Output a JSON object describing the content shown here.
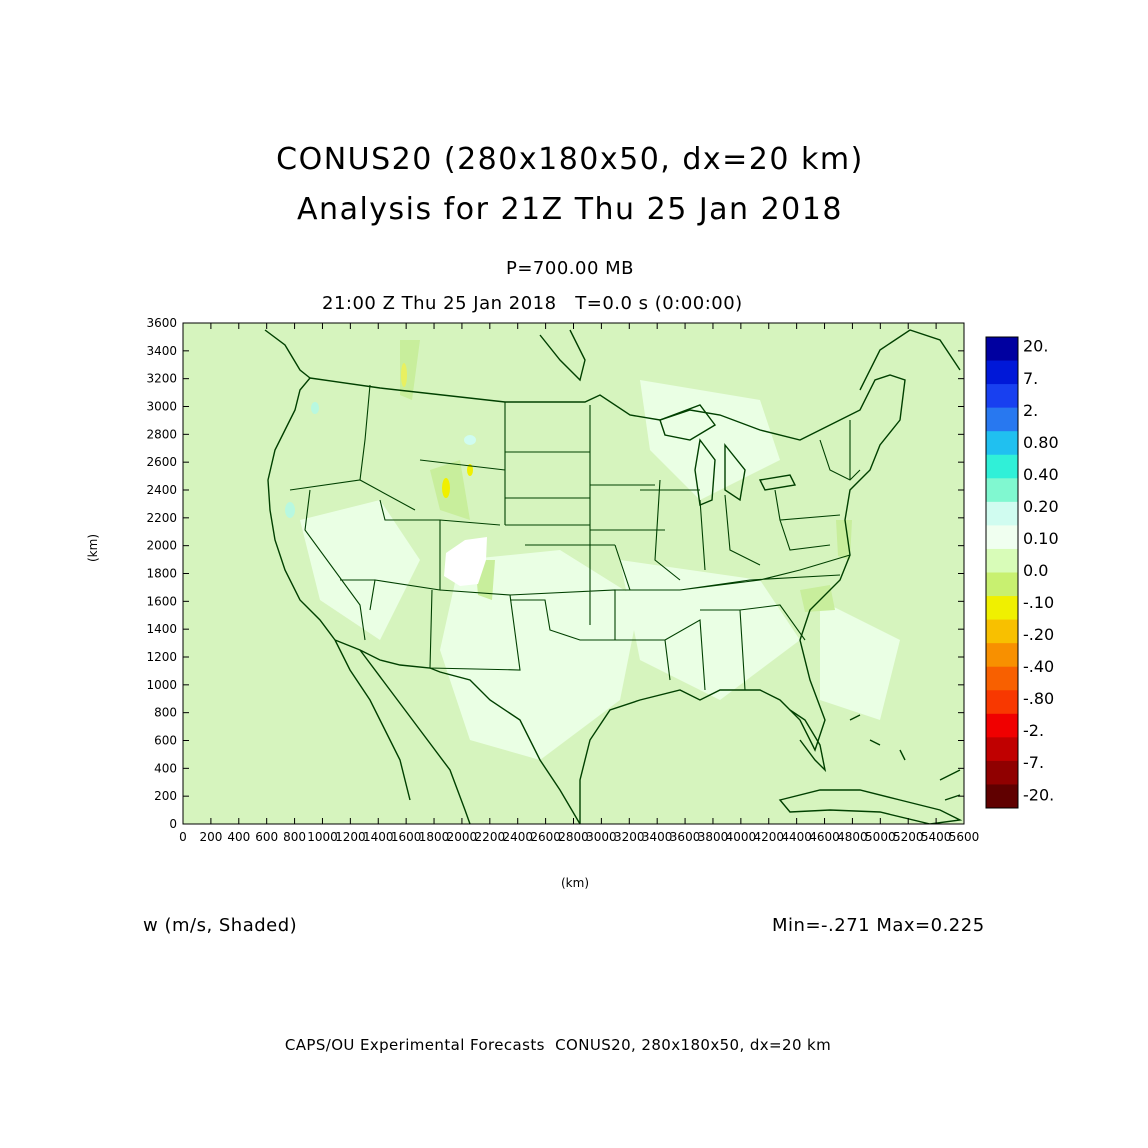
{
  "header": {
    "title_line1": "CONUS20 (280x180x50, dx=20 km)",
    "title_line2": "Analysis for 21Z Thu 25 Jan 2018",
    "level": "P=700.00 MB",
    "valid_time": "21:00 Z Thu 25 Jan 2018   T=0.0 s (0:00:00)"
  },
  "axes": {
    "x_label": "(km)",
    "y_label": "(km)",
    "x_range": [
      0,
      5600
    ],
    "y_range": [
      0,
      3600
    ],
    "x_ticks": [
      "0",
      "200",
      "400",
      "600",
      "800",
      "1000",
      "1200",
      "1400",
      "1600",
      "1800",
      "2000",
      "2200",
      "2400",
      "2600",
      "2800",
      "3000",
      "3200",
      "3400",
      "3600",
      "3800",
      "4000",
      "4200",
      "4400",
      "4600",
      "4800",
      "5000",
      "5200",
      "5400",
      "5600"
    ],
    "y_ticks": [
      "0",
      "200",
      "400",
      "600",
      "800",
      "1000",
      "1200",
      "1400",
      "1600",
      "1800",
      "2000",
      "2200",
      "2400",
      "2600",
      "2800",
      "3000",
      "3200",
      "3400",
      "3600"
    ]
  },
  "colorbar": {
    "labels": [
      "20.",
      "7.",
      "2.",
      "0.80",
      "0.40",
      "0.20",
      "0.10",
      "0.0",
      "-.10",
      "-.20",
      "-.40",
      "-.80",
      "-2.",
      "-7.",
      "-20."
    ],
    "colors": [
      "#0000a0",
      "#0018d8",
      "#1840f0",
      "#2878f0",
      "#20c0f0",
      "#30f0d8",
      "#80f8d0",
      "#d0fcf0",
      "#f0fff0",
      "#d8fcb8",
      "#c8f070",
      "#f0f000",
      "#f8c000",
      "#f89000",
      "#f86000",
      "#f83800",
      "#f00000",
      "#c00000",
      "#900000",
      "#600000"
    ],
    "tick_count": 15
  },
  "map": {
    "base_fill": "#d8f5c0",
    "boundary_color": "#004000",
    "missing_region_color": "#ffffff",
    "missing_region_center_km": [
      2075,
      1870
    ]
  },
  "variable_label": "w (m/s, Shaded)",
  "stats": "Min=-.271 Max=0.225",
  "footer": "CAPS/OU Experimental Forecasts  CONUS20, 280x180x50, dx=20 km"
}
